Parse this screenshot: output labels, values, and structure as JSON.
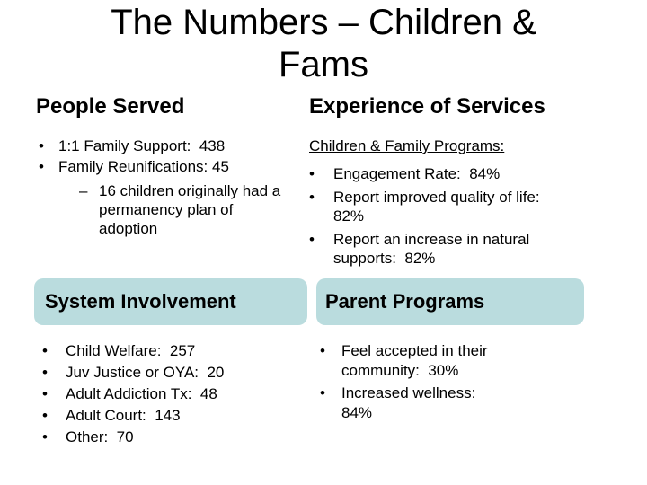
{
  "glyphs": {
    "bullet": "•",
    "dash": "–"
  },
  "colors": {
    "background": "#ffffff",
    "text": "#000000",
    "box_fill": "#badcde"
  },
  "title": {
    "line1": "The Numbers – Children &",
    "line2": "Fams"
  },
  "people_served": {
    "heading": "People Served",
    "bullets": [
      {
        "text": "1:1 Family Support:  438"
      },
      {
        "text": "Family Reunifications: 45"
      }
    ],
    "sub_bullet": {
      "text": "16 children originally had a permanency plan of adoption"
    }
  },
  "experience": {
    "heading": "Experience of Services",
    "subheading": "Children & Family Programs:",
    "bullets": [
      {
        "text": "Engagement Rate:  84%"
      },
      {
        "text": "Report improved quality of life:  82%"
      },
      {
        "text": "Report an increase in natural supports:  82%"
      }
    ]
  },
  "system_involvement": {
    "label": "System Involvement",
    "bullets": [
      {
        "text": "Child Welfare:  257"
      },
      {
        "text": "Juv Justice or OYA:  20"
      },
      {
        "text": "Adult Addiction Tx:  48"
      },
      {
        "text": "Adult Court:  143"
      },
      {
        "text": "Other:  70"
      }
    ]
  },
  "parent_programs": {
    "label": "Parent Programs",
    "bullets": [
      {
        "text": "Feel accepted in their community:  30%"
      },
      {
        "text": "Increased wellness:  84%"
      }
    ]
  }
}
